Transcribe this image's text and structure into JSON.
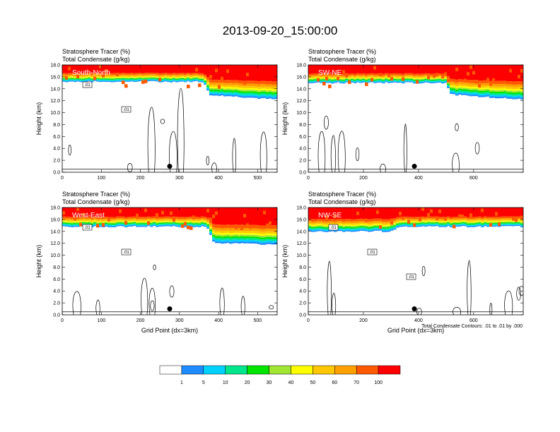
{
  "title": "2013-09-20_15:00:00",
  "note": "Total Condensate Contours: .01 to .01 by .000",
  "shared_labels": {
    "ylabel": "Height (km)",
    "xlabel": "Grid Point (dx=3km)",
    "title_line1": "Stratosphere Tracer   (%)",
    "title_line2": "Total Condensate   (g/kg)"
  },
  "colorbar": {
    "colors": [
      "#ffffff",
      "#1e8cff",
      "#00d2ff",
      "#00e68c",
      "#00e600",
      "#a0e632",
      "#ffff00",
      "#ffc800",
      "#ffa000",
      "#ff5a00",
      "#ff0000"
    ],
    "labels": [
      "1",
      "5",
      "10",
      "20",
      "30",
      "40",
      "50",
      "60",
      "70",
      "100"
    ]
  },
  "chart_data": [
    {
      "type": "heatmap",
      "panel": "South-North",
      "title": [
        "Stratosphere Tracer   (%)",
        "Total Condensate   (g/kg)"
      ],
      "xlabel": "",
      "ylabel": "Height (km)",
      "xlim": [
        0,
        550
      ],
      "ylim": [
        0,
        18
      ],
      "xticks": [
        0,
        100,
        200,
        300,
        400,
        500
      ],
      "yticks": [
        "0.0",
        "2.0",
        "4.0",
        "6.0",
        "8.0",
        "10.0",
        "12.0",
        "14.0",
        "16.0",
        "18.0"
      ],
      "tropopause_km": [
        [
          0,
          15.2
        ],
        [
          360,
          15.2
        ],
        [
          380,
          13.0
        ],
        [
          550,
          12.2
        ]
      ],
      "contour_labels": [
        ".01",
        ".01"
      ],
      "marker_gridpoint": 275
    },
    {
      "type": "heatmap",
      "panel": "SW-NE",
      "title": [
        "Stratosphere Tracer   (%)",
        "Total Condensate   (g/kg)"
      ],
      "xlabel": "",
      "ylabel": "Height (km)",
      "xlim": [
        0,
        780
      ],
      "ylim": [
        0,
        18
      ],
      "xticks": [
        0,
        200,
        400,
        600
      ],
      "yticks": [
        "0.0",
        "2.0",
        "4.0",
        "6.0",
        "8.0",
        "10.0",
        "12.0",
        "14.0",
        "16.0",
        "18.0"
      ],
      "tropopause_km": [
        [
          0,
          15.0
        ],
        [
          500,
          15.0
        ],
        [
          520,
          13.0
        ],
        [
          780,
          12.2
        ]
      ],
      "contour_labels": [],
      "marker_gridpoint": 385
    },
    {
      "type": "heatmap",
      "panel": "West-East",
      "title": [
        "Stratosphere Tracer   (%)",
        "Total Condensate   (g/kg)"
      ],
      "xlabel": "Grid Point (dx=3km)",
      "ylabel": "Height (km)",
      "xlim": [
        0,
        550
      ],
      "ylim": [
        0,
        18
      ],
      "xticks": [
        0,
        100,
        200,
        300,
        400,
        500
      ],
      "yticks": [
        "0.0",
        "2.0",
        "4.0",
        "6.0",
        "8.0",
        "10.0",
        "12.0",
        "14.0",
        "16.0",
        "18.0"
      ],
      "tropopause_km": [
        [
          0,
          14.8
        ],
        [
          370,
          14.8
        ],
        [
          390,
          12.0
        ],
        [
          550,
          11.8
        ]
      ],
      "contour_labels": [
        ".01",
        ".01"
      ],
      "marker_gridpoint": 275
    },
    {
      "type": "heatmap",
      "panel": "NW-SE",
      "title": [
        "Stratosphere Tracer   (%)",
        "Total Condensate   (g/kg)"
      ],
      "xlabel": "Grid Point (dx=3km)",
      "ylabel": "Height (km)",
      "xlim": [
        0,
        780
      ],
      "ylim": [
        0,
        18
      ],
      "xticks": [
        0,
        200,
        400,
        600
      ],
      "yticks": [
        "0.0",
        "2.0",
        "4.0",
        "6.0",
        "8.0",
        "10.0",
        "12.0",
        "14.0",
        "16.0",
        "18.0"
      ],
      "tropopause_km": [
        [
          0,
          14.0
        ],
        [
          300,
          14.0
        ],
        [
          330,
          14.8
        ],
        [
          780,
          14.8
        ]
      ],
      "contour_labels": [
        ".01",
        ".01",
        ".01"
      ],
      "marker_gridpoint": 385
    }
  ]
}
